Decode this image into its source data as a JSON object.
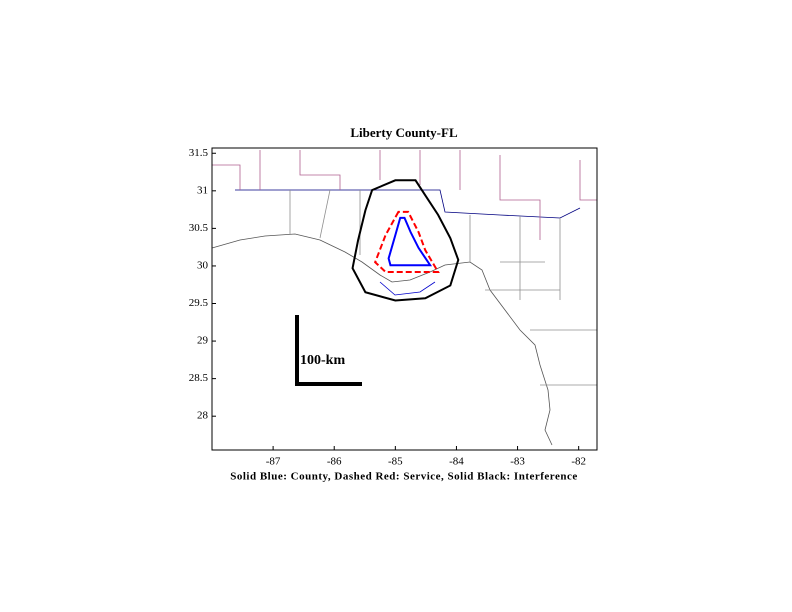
{
  "chart_data": {
    "type": "map",
    "title": "Liberty County-FL",
    "xlabel": "Solid Blue: County, Dashed Red: Service, Solid Black: Interference",
    "scale_label": "100-km",
    "xlim": [
      -88,
      -81.7
    ],
    "ylim": [
      27.55,
      31.57
    ],
    "xticks": [
      -87,
      -86,
      -85,
      -84,
      -83,
      -82
    ],
    "yticks": [
      28,
      28.5,
      29,
      29.5,
      30,
      30.5,
      31,
      31.5
    ],
    "series": [
      {
        "color": "#0000ff",
        "dashed": false,
        "x": [
          -84.92,
          -85.0,
          -85.11,
          -85.08,
          -84.43,
          -84.62,
          -84.75,
          -84.85
        ],
        "y": [
          30.64,
          30.41,
          30.1,
          30.01,
          30.01,
          30.24,
          30.45,
          30.64
        ]
      },
      {
        "color": "#ff0000",
        "dashed": true,
        "x": [
          -84.95,
          -85.16,
          -85.33,
          -85.16,
          -84.3,
          -84.51,
          -84.62,
          -84.79
        ],
        "y": [
          30.72,
          30.41,
          30.05,
          29.92,
          29.92,
          30.21,
          30.45,
          30.72
        ]
      },
      {
        "color": "#000000",
        "dashed": false,
        "x": [
          -85.0,
          -84.67,
          -84.51,
          -84.3,
          -84.1,
          -83.97,
          -84.1,
          -84.51,
          -85.0,
          -85.49,
          -85.7,
          -85.61,
          -85.49,
          -85.38
        ],
        "y": [
          31.14,
          31.14,
          30.94,
          30.68,
          30.37,
          30.08,
          29.74,
          29.57,
          29.54,
          29.65,
          29.97,
          30.34,
          30.74,
          31.01
        ]
      }
    ]
  }
}
